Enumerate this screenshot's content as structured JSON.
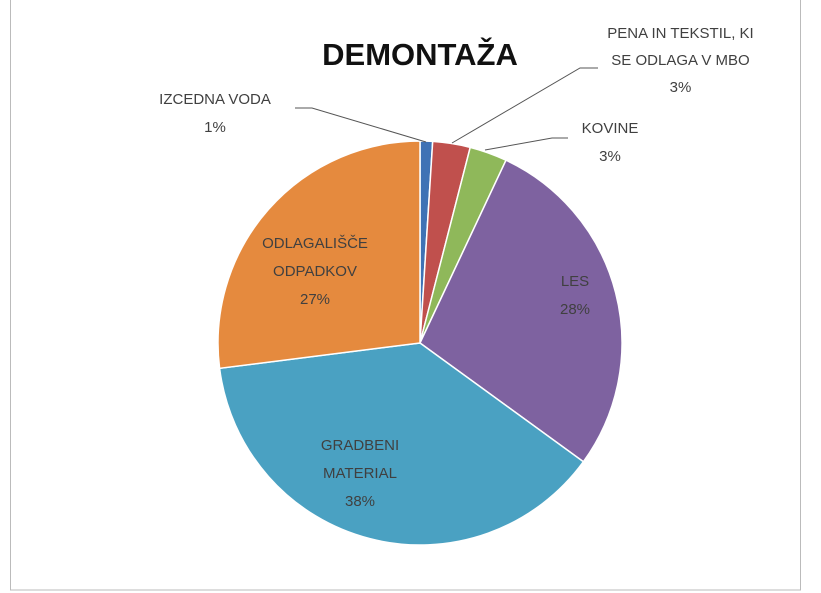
{
  "chart_data": {
    "type": "pie",
    "title": "DEMONTAŽA",
    "categories": [
      "IZCEDNA VODA",
      "PENA IN TEKSTIL, KI SE ODLAGA V MBO",
      "KOVINE",
      "LES",
      "GRADBENI MATERIAL",
      "ODLAGALIŠČE ODPADKOV"
    ],
    "values": [
      1,
      3,
      3,
      28,
      38,
      27
    ],
    "value_labels": [
      "1%",
      "3%",
      "3%",
      "28%",
      "38%",
      "27%"
    ],
    "colors": [
      "#3f72b5",
      "#c0504d",
      "#8fb85a",
      "#7e62a0",
      "#4aa1c2",
      "#e58a3e"
    ]
  }
}
